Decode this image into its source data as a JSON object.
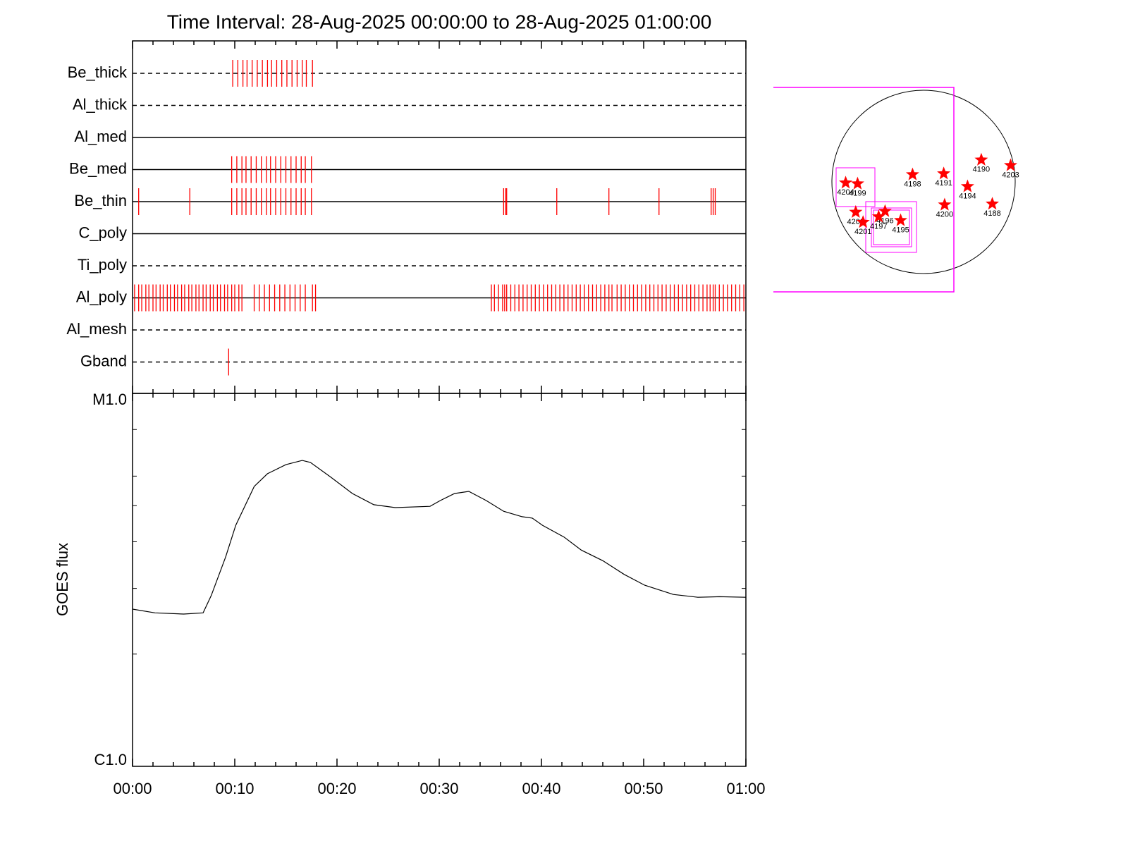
{
  "chart_data": [
    {
      "type": "event",
      "title": "Time Interval: 28-Aug-2025 00:00:00 to 28-Aug-2025 01:00:00",
      "xlim": [
        0,
        60
      ],
      "color": "#ff0000",
      "rows": [
        {
          "name": "Be_thick",
          "line_style": "dashed",
          "events": [
            9.8,
            10.3,
            10.8,
            11.2,
            11.7,
            12.2,
            12.7,
            13.2,
            13.6,
            14.1,
            14.6,
            15.1,
            15.6,
            16.1,
            16.6,
            17.0,
            17.6
          ]
        },
        {
          "name": "Al_thick",
          "line_style": "dashed",
          "events": []
        },
        {
          "name": "Al_med",
          "line_style": "solid",
          "events": []
        },
        {
          "name": "Be_med",
          "line_style": "solid",
          "events": [
            9.7,
            10.2,
            10.7,
            11.1,
            11.6,
            12.1,
            12.6,
            13.1,
            13.5,
            14.0,
            14.5,
            15.0,
            15.5,
            16.0,
            16.5,
            16.9,
            17.5
          ]
        },
        {
          "name": "Be_thin",
          "line_style": "solid",
          "events": [
            0.6,
            5.6,
            9.7,
            10.2,
            10.7,
            11.1,
            11.6,
            12.1,
            12.6,
            13.1,
            13.5,
            14.0,
            14.5,
            15.0,
            15.5,
            16.0,
            16.5,
            16.9,
            17.5,
            36.3,
            36.5,
            36.6,
            41.5,
            46.6,
            51.5,
            56.6,
            56.8,
            57.0
          ]
        },
        {
          "name": "C_poly",
          "line_style": "solid",
          "events": []
        },
        {
          "name": "Ti_poly",
          "line_style": "dashed",
          "events": []
        },
        {
          "name": "Al_poly",
          "line_style": "solid",
          "events": [
            0.2,
            0.6,
            0.9,
            1.3,
            1.6,
            2.0,
            2.3,
            2.7,
            3.0,
            3.4,
            3.7,
            4.1,
            4.4,
            4.8,
            5.1,
            5.5,
            5.8,
            6.2,
            6.5,
            6.9,
            7.2,
            7.6,
            7.9,
            8.3,
            8.6,
            9.0,
            9.3,
            9.7,
            10.0,
            10.4,
            10.7,
            11.9,
            12.4,
            12.9,
            13.4,
            13.9,
            14.4,
            14.9,
            15.4,
            15.9,
            16.4,
            16.9,
            17.6,
            17.9,
            35.1,
            35.4,
            35.8,
            36.2,
            36.4,
            36.6,
            37.0,
            37.4,
            37.8,
            38.2,
            38.6,
            39.0,
            39.4,
            39.8,
            40.2,
            40.6,
            41.0,
            41.4,
            41.8,
            42.2,
            42.6,
            43.0,
            43.4,
            43.8,
            44.2,
            44.6,
            45.0,
            45.4,
            45.8,
            46.2,
            46.6,
            46.9,
            47.4,
            47.8,
            48.2,
            48.6,
            49.0,
            49.4,
            49.8,
            50.2,
            50.6,
            51.0,
            51.4,
            51.8,
            52.2,
            52.6,
            53.0,
            53.4,
            53.8,
            54.2,
            54.6,
            55.0,
            55.4,
            55.8,
            56.2,
            56.5,
            56.8,
            57.0,
            57.4,
            57.8,
            58.2,
            58.6,
            59.0,
            59.4,
            59.8
          ]
        },
        {
          "name": "Al_mesh",
          "line_style": "dashed",
          "events": []
        },
        {
          "name": "Gband",
          "line_style": "dashed",
          "events": [
            9.4
          ]
        }
      ]
    },
    {
      "type": "line",
      "y_label": "GOES flux",
      "log_y": true,
      "color": "#000000",
      "xlim": [
        0,
        60
      ],
      "xticks": [
        {
          "value": 0,
          "label": "00:00"
        },
        {
          "value": 10,
          "label": "00:10"
        },
        {
          "value": 20,
          "label": "00:20"
        },
        {
          "value": 30,
          "label": "00:30"
        },
        {
          "value": 40,
          "label": "00:40"
        },
        {
          "value": 50,
          "label": "00:50"
        },
        {
          "value": 60,
          "label": "01:00"
        }
      ],
      "minor_xticks": [
        2,
        4,
        6,
        8,
        12,
        14,
        16,
        18,
        22,
        24,
        26,
        28,
        32,
        34,
        36,
        38,
        42,
        44,
        46,
        48,
        52,
        54,
        56,
        58
      ],
      "ylim": [
        1e-06,
        1e-05
      ],
      "yticks": [
        {
          "value": 1e-06,
          "label": "C1.0"
        },
        {
          "value": 1e-05,
          "label": "M1.0"
        }
      ],
      "minor_yticks": [
        2e-06,
        3e-06,
        4e-06,
        5e-06,
        6e-06,
        8e-06
      ],
      "x": [
        0,
        2.2,
        5.0,
        6.9,
        7.7,
        9.1,
        10.1,
        11.9,
        13.2,
        15.0,
        16.6,
        17.4,
        19.4,
        21.5,
        23.6,
        25.7,
        29.1,
        30.1,
        31.5,
        32.9,
        34.6,
        36.3,
        38.1,
        39.1,
        40.1,
        42.2,
        43.9,
        46.0,
        48.1,
        50.1,
        52.9,
        55.3,
        57.4,
        60
      ],
      "values": [
        2.64e-06,
        2.58e-06,
        2.56e-06,
        2.58e-06,
        2.87e-06,
        3.64e-06,
        4.43e-06,
        5.63e-06,
        6.09e-06,
        6.44e-06,
        6.61e-06,
        6.53e-06,
        5.96e-06,
        5.39e-06,
        5.03e-06,
        4.94e-06,
        4.98e-06,
        5.16e-06,
        5.39e-06,
        5.46e-06,
        5.16e-06,
        4.83e-06,
        4.67e-06,
        4.63e-06,
        4.43e-06,
        4.12e-06,
        3.8e-06,
        3.56e-06,
        3.27e-06,
        3.06e-06,
        2.89e-06,
        2.84e-06,
        2.85e-06,
        2.84e-06
      ]
    },
    {
      "type": "map",
      "color": "#ff0000",
      "regions": [
        {
          "label": "4190",
          "x": 0.63,
          "y": 0.24
        },
        {
          "label": "4203",
          "x": 0.95,
          "y": 0.18
        },
        {
          "label": "4198",
          "x": -0.12,
          "y": 0.08
        },
        {
          "label": "4191",
          "x": 0.22,
          "y": 0.09
        },
        {
          "label": "4194",
          "x": 0.48,
          "y": -0.05
        },
        {
          "label": "4188",
          "x": 0.75,
          "y": -0.24
        },
        {
          "label": "4200",
          "x": 0.23,
          "y": -0.25
        },
        {
          "label": "4204",
          "x": -0.85,
          "y": -0.01
        },
        {
          "label": "4199",
          "x": -0.72,
          "y": -0.02
        },
        {
          "label": "4202",
          "x": -0.74,
          "y": -0.33
        },
        {
          "label": "4201",
          "x": -0.66,
          "y": -0.44
        },
        {
          "label": "4196",
          "x": -0.42,
          "y": -0.32
        },
        {
          "label": "4197",
          "x": -0.49,
          "y": -0.38
        },
        {
          "label": "4195",
          "x": -0.25,
          "y": -0.42
        }
      ]
    }
  ]
}
